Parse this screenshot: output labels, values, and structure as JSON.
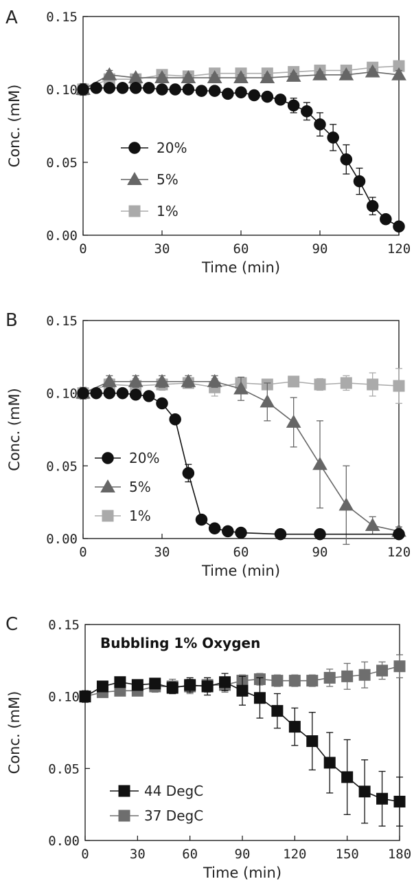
{
  "chart_data": [
    {
      "panel": "A",
      "type": "line",
      "title": "",
      "xlabel": "Time (min)",
      "ylabel": "Conc. (mM)",
      "xlim": [
        0,
        120
      ],
      "ylim": [
        0,
        0.15
      ],
      "xticks": [
        "0",
        "30",
        "60",
        "90",
        "120"
      ],
      "yticks": [
        "0.00",
        "0.05",
        "0.10",
        "0.15"
      ],
      "grid": false,
      "legend_position": "center-left",
      "series": [
        {
          "name": "20%",
          "color": "#111111",
          "marker": "circle",
          "x": [
            0,
            5,
            10,
            15,
            20,
            25,
            30,
            35,
            40,
            45,
            50,
            55,
            60,
            65,
            70,
            75,
            80,
            85,
            90,
            95,
            100,
            105,
            110,
            115,
            120
          ],
          "y": [
            0.1,
            0.101,
            0.101,
            0.101,
            0.101,
            0.101,
            0.1,
            0.1,
            0.1,
            0.099,
            0.099,
            0.097,
            0.098,
            0.096,
            0.095,
            0.093,
            0.089,
            0.085,
            0.076,
            0.067,
            0.052,
            0.037,
            0.02,
            0.011,
            0.006
          ],
          "err": [
            0,
            0,
            0,
            0,
            0,
            0,
            0,
            0,
            0,
            0,
            0,
            0,
            0,
            0,
            0,
            0,
            0.005,
            0.006,
            0.008,
            0.009,
            0.01,
            0.009,
            0.006,
            0,
            0
          ]
        },
        {
          "name": "5%",
          "color": "#666666",
          "marker": "triangle",
          "x": [
            0,
            10,
            20,
            30,
            40,
            50,
            60,
            70,
            80,
            90,
            100,
            110,
            120
          ],
          "y": [
            0.1,
            0.11,
            0.108,
            0.108,
            0.108,
            0.108,
            0.108,
            0.108,
            0.109,
            0.11,
            0.11,
            0.112,
            0.11
          ],
          "err": [
            0.004,
            0.003,
            0.002,
            0.002,
            0.002,
            0.002,
            0.002,
            0.002,
            0.002,
            0.002,
            0.002,
            0.002,
            0.003
          ]
        },
        {
          "name": "1%",
          "color": "#aaaaaa",
          "marker": "square",
          "x": [
            0,
            10,
            20,
            30,
            40,
            50,
            60,
            70,
            80,
            90,
            100,
            110,
            120
          ],
          "y": [
            0.1,
            0.107,
            0.107,
            0.11,
            0.109,
            0.111,
            0.111,
            0.111,
            0.112,
            0.113,
            0.113,
            0.115,
            0.116
          ],
          "err": [
            0.003,
            0.003,
            0.002,
            0.002,
            0.002,
            0.002,
            0.002,
            0.002,
            0.002,
            0.002,
            0.002,
            0.002,
            0.003
          ]
        }
      ]
    },
    {
      "panel": "B",
      "type": "line",
      "title": "",
      "xlabel": "Time (min)",
      "ylabel": "Conc. (mM)",
      "xlim": [
        0,
        120
      ],
      "ylim": [
        0,
        0.15
      ],
      "xticks": [
        "0",
        "30",
        "60",
        "90",
        "120"
      ],
      "yticks": [
        "0.00",
        "0.05",
        "0.10",
        "0.15"
      ],
      "grid": false,
      "legend_position": "center-left",
      "series": [
        {
          "name": "20%",
          "color": "#111111",
          "marker": "circle",
          "x": [
            0,
            5,
            10,
            15,
            20,
            25,
            30,
            35,
            40,
            45,
            50,
            55,
            60,
            75,
            90,
            120
          ],
          "y": [
            0.1,
            0.1,
            0.1,
            0.1,
            0.099,
            0.098,
            0.093,
            0.082,
            0.045,
            0.013,
            0.007,
            0.005,
            0.004,
            0.003,
            0.003,
            0.003
          ],
          "err": [
            0,
            0,
            0,
            0,
            0,
            0,
            0,
            0,
            0.006,
            0,
            0,
            0,
            0,
            0,
            0,
            0
          ]
        },
        {
          "name": "5%",
          "color": "#666666",
          "marker": "triangle",
          "x": [
            0,
            10,
            20,
            30,
            40,
            50,
            60,
            70,
            80,
            90,
            100,
            110,
            120
          ],
          "y": [
            0.1,
            0.108,
            0.108,
            0.108,
            0.108,
            0.108,
            0.103,
            0.094,
            0.08,
            0.051,
            0.023,
            0.009,
            0.005
          ],
          "err": [
            0.004,
            0.004,
            0.004,
            0.004,
            0.004,
            0.004,
            0.008,
            0.013,
            0.017,
            0.03,
            0.027,
            0.006,
            0.003
          ]
        },
        {
          "name": "1%",
          "color": "#aaaaaa",
          "marker": "square",
          "x": [
            0,
            10,
            20,
            30,
            40,
            50,
            60,
            70,
            80,
            90,
            100,
            110,
            120
          ],
          "y": [
            0.1,
            0.106,
            0.105,
            0.106,
            0.107,
            0.104,
            0.107,
            0.106,
            0.108,
            0.106,
            0.107,
            0.106,
            0.105
          ],
          "err": [
            0.003,
            0.004,
            0.005,
            0.004,
            0.003,
            0.006,
            0.004,
            0.003,
            0.003,
            0.004,
            0.005,
            0.008,
            0.012
          ]
        }
      ]
    },
    {
      "panel": "C",
      "type": "line",
      "title": "Bubbling 1% Oxygen",
      "xlabel": "Time (min)",
      "ylabel": "Conc. (mM)",
      "xlim": [
        0,
        180
      ],
      "ylim": [
        0,
        0.15
      ],
      "xticks": [
        "0",
        "30",
        "60",
        "90",
        "120",
        "150",
        "180"
      ],
      "yticks": [
        "0.00",
        "0.05",
        "0.10",
        "0.15"
      ],
      "grid": false,
      "legend_position": "bottom-left",
      "series": [
        {
          "name": "44 DegC",
          "color": "#111111",
          "marker": "square",
          "x": [
            0,
            10,
            20,
            30,
            40,
            50,
            60,
            70,
            80,
            90,
            100,
            110,
            120,
            130,
            140,
            150,
            160,
            170,
            180
          ],
          "y": [
            0.1,
            0.107,
            0.11,
            0.108,
            0.109,
            0.106,
            0.108,
            0.107,
            0.11,
            0.104,
            0.099,
            0.09,
            0.079,
            0.069,
            0.054,
            0.044,
            0.034,
            0.029,
            0.027
          ],
          "err": [
            0.004,
            0.003,
            0.003,
            0.003,
            0.003,
            0.004,
            0.005,
            0.006,
            0.006,
            0.01,
            0.014,
            0.012,
            0.013,
            0.02,
            0.021,
            0.026,
            0.022,
            0.019,
            0.017
          ]
        },
        {
          "name": "37 DegC",
          "color": "#6e6e6e",
          "marker": "square",
          "x": [
            0,
            10,
            20,
            30,
            40,
            50,
            60,
            70,
            80,
            90,
            100,
            110,
            120,
            130,
            140,
            150,
            160,
            170,
            180
          ],
          "y": [
            0.1,
            0.103,
            0.104,
            0.104,
            0.107,
            0.107,
            0.107,
            0.108,
            0.108,
            0.111,
            0.112,
            0.111,
            0.111,
            0.111,
            0.113,
            0.114,
            0.115,
            0.118,
            0.121
          ],
          "err": [
            0.003,
            0.003,
            0.003,
            0.003,
            0.004,
            0.005,
            0.005,
            0.005,
            0.005,
            0.004,
            0.004,
            0.004,
            0.004,
            0.004,
            0.006,
            0.009,
            0.009,
            0.006,
            0.008
          ]
        }
      ]
    }
  ]
}
